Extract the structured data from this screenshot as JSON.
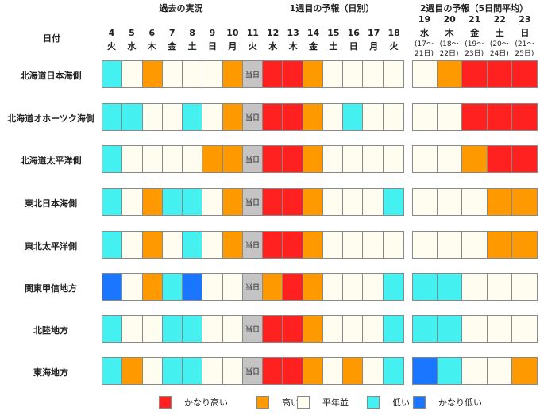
{
  "headers": {
    "date_label": "日付",
    "past": "過去の実況",
    "week1": "1週目の予報（日別）",
    "week2": "2週目の予報（5日間平均）"
  },
  "week1_days": [
    {
      "num": "4",
      "dow": "火"
    },
    {
      "num": "5",
      "dow": "水"
    },
    {
      "num": "6",
      "dow": "木"
    },
    {
      "num": "7",
      "dow": "金"
    },
    {
      "num": "8",
      "dow": "土"
    },
    {
      "num": "9",
      "dow": "日"
    },
    {
      "num": "10",
      "dow": "月"
    },
    {
      "num": "11",
      "dow": "火"
    },
    {
      "num": "12",
      "dow": "水"
    },
    {
      "num": "13",
      "dow": "木"
    },
    {
      "num": "14",
      "dow": "金"
    },
    {
      "num": "15",
      "dow": "土"
    },
    {
      "num": "16",
      "dow": "日"
    },
    {
      "num": "17",
      "dow": "月"
    },
    {
      "num": "18",
      "dow": "火"
    }
  ],
  "week2_days": [
    {
      "num": "19",
      "dow": "水",
      "r1": "(17～",
      "r2": "21日)"
    },
    {
      "num": "20",
      "dow": "木",
      "r1": "(18～",
      "r2": "22日)"
    },
    {
      "num": "21",
      "dow": "金",
      "r1": "(19～",
      "r2": "23日)"
    },
    {
      "num": "22",
      "dow": "土",
      "r1": "(20～",
      "r2": "24日)"
    },
    {
      "num": "23",
      "dow": "日",
      "r1": "(21～",
      "r2": "25日)"
    }
  ],
  "today_label": "当日",
  "colors": {
    "VH": "#ff2020",
    "H": "#ff9900",
    "N": "#fffdf0",
    "L": "#44f0f0",
    "VL": "#1a75ff",
    "T": "#c4c4c4"
  },
  "regions": [
    {
      "name": "北海道日本海側",
      "week1": [
        "L",
        "N",
        "H",
        "N",
        "N",
        "N",
        "H",
        "T",
        "VH",
        "VH",
        "H",
        "N",
        "N",
        "N",
        "N"
      ],
      "week2": [
        "N",
        "H",
        "VH",
        "VH",
        "VH"
      ]
    },
    {
      "name": "北海道オホーツク海側",
      "week1": [
        "L",
        "L",
        "N",
        "N",
        "L",
        "N",
        "H",
        "T",
        "VH",
        "VH",
        "H",
        "N",
        "L",
        "N",
        "N"
      ],
      "week2": [
        "N",
        "N",
        "VH",
        "VH",
        "VH"
      ]
    },
    {
      "name": "北海道太平洋側",
      "week1": [
        "L",
        "N",
        "N",
        "N",
        "N",
        "H",
        "H",
        "T",
        "VH",
        "VH",
        "H",
        "N",
        "N",
        "N",
        "N"
      ],
      "week2": [
        "N",
        "N",
        "H",
        "VH",
        "VH"
      ]
    },
    {
      "name": "東北日本海側",
      "week1": [
        "L",
        "N",
        "H",
        "L",
        "L",
        "N",
        "H",
        "T",
        "VH",
        "VH",
        "H",
        "N",
        "N",
        "N",
        "L"
      ],
      "week2": [
        "N",
        "N",
        "N",
        "H",
        "H"
      ]
    },
    {
      "name": "東北太平洋側",
      "week1": [
        "L",
        "N",
        "H",
        "N",
        "L",
        "N",
        "H",
        "T",
        "VH",
        "VH",
        "H",
        "N",
        "N",
        "N",
        "N"
      ],
      "week2": [
        "N",
        "N",
        "N",
        "H",
        "H"
      ]
    },
    {
      "name": "関東甲信地方",
      "week1": [
        "VL",
        "N",
        "H",
        "L",
        "VL",
        "N",
        "N",
        "T",
        "H",
        "VH",
        "H",
        "N",
        "N",
        "N",
        "L"
      ],
      "week2": [
        "L",
        "L",
        "N",
        "N",
        "N"
      ]
    },
    {
      "name": "北陸地方",
      "week1": [
        "L",
        "N",
        "N",
        "L",
        "L",
        "N",
        "N",
        "T",
        "VH",
        "VH",
        "H",
        "N",
        "N",
        "N",
        "L"
      ],
      "week2": [
        "L",
        "L",
        "N",
        "N",
        "N"
      ]
    },
    {
      "name": "東海地方",
      "week1": [
        "L",
        "H",
        "N",
        "L",
        "L",
        "N",
        "N",
        "T",
        "VH",
        "VH",
        "H",
        "N",
        "H",
        "N",
        "L"
      ],
      "week2": [
        "VL",
        "L",
        "N",
        "N",
        "H"
      ]
    }
  ],
  "legend": [
    {
      "key": "VH",
      "label": "かなり高い"
    },
    {
      "key": "H",
      "label": "高い"
    },
    {
      "key": "N",
      "label": "平年並"
    },
    {
      "key": "L",
      "label": "低い"
    },
    {
      "key": "VL",
      "label": "かなり低い"
    }
  ]
}
